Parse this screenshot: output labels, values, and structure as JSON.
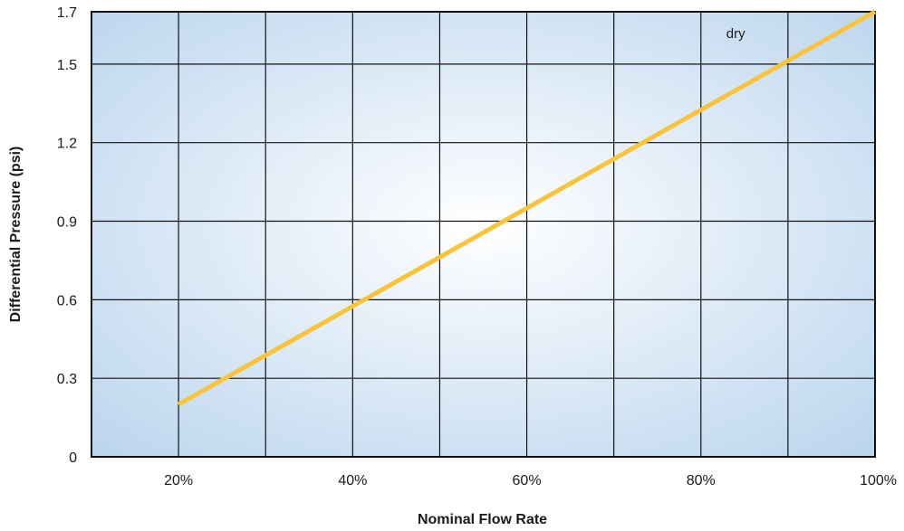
{
  "chart_data": {
    "type": "line",
    "title": "",
    "xlabel": "Nominal Flow Rate",
    "ylabel": "Differential Pressure (psi)",
    "xlim": [
      10,
      100
    ],
    "ylim": [
      0,
      1.7
    ],
    "x_ticks": [
      {
        "value": 20,
        "label": "20%"
      },
      {
        "value": 40,
        "label": "40%"
      },
      {
        "value": 60,
        "label": "60%"
      },
      {
        "value": 80,
        "label": "80%"
      },
      {
        "value": 100,
        "label": "100%"
      }
    ],
    "y_ticks": [
      {
        "value": 0,
        "label": "0"
      },
      {
        "value": 0.3,
        "label": "0.3"
      },
      {
        "value": 0.6,
        "label": "0.6"
      },
      {
        "value": 0.9,
        "label": "0.9"
      },
      {
        "value": 1.2,
        "label": "1.2"
      },
      {
        "value": 1.5,
        "label": "1.5"
      },
      {
        "value": 1.7,
        "label": "1.7"
      }
    ],
    "x_grid": [
      10,
      20,
      30,
      40,
      50,
      60,
      70,
      80,
      90,
      100
    ],
    "y_grid": [
      0,
      0.3,
      0.6,
      0.9,
      1.2,
      1.5,
      1.7
    ],
    "grid": true,
    "series": [
      {
        "name": "dry",
        "color": "#f9c43a",
        "x": [
          20,
          100
        ],
        "y": [
          0.2,
          1.7
        ],
        "label_at": {
          "x": 84,
          "y": 1.6
        }
      }
    ],
    "colors": {
      "plot_center": "#ffffff",
      "plot_edge": "#bcd6ee",
      "grid": "#111111",
      "frame": "#111111"
    }
  }
}
